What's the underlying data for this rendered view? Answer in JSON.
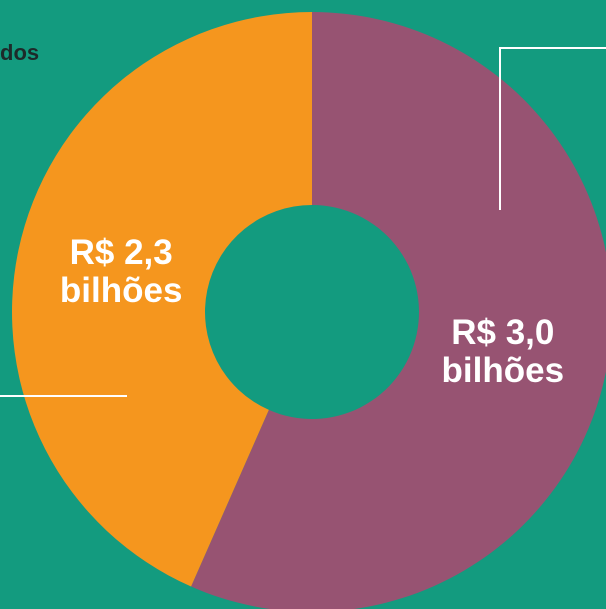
{
  "chart_data": {
    "type": "donut",
    "annotation": "dos",
    "values": [
      3.0,
      2.3
    ],
    "value_labels": [
      "R$ 3,0 bilhões",
      "R$ 2,3 bilhões"
    ],
    "colors": [
      "#975372",
      "#f5961e"
    ],
    "start_angle": 0,
    "direction": "clockwise"
  }
}
